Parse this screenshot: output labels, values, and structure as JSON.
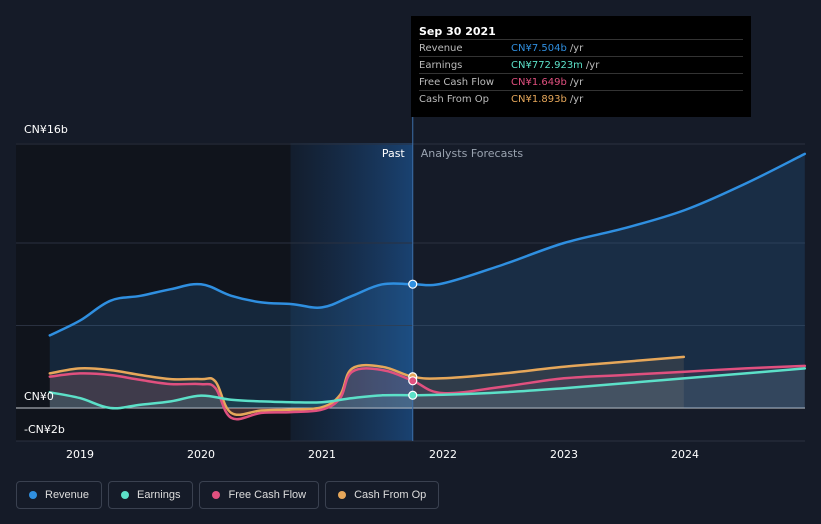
{
  "tooltip": {
    "date": "Sep 30 2021",
    "rows": [
      {
        "label": "Revenue",
        "value": "CN¥7.504b",
        "unit": "/yr",
        "color": "#2f8fe0"
      },
      {
        "label": "Earnings",
        "value": "CN¥772.923m",
        "unit": "/yr",
        "color": "#5ce0c8"
      },
      {
        "label": "Free Cash Flow",
        "value": "CN¥1.649b",
        "unit": "/yr",
        "color": "#e0507f"
      },
      {
        "label": "Cash From Op",
        "value": "CN¥1.893b",
        "unit": "/yr",
        "color": "#e6a75a"
      }
    ]
  },
  "past_label": "Past",
  "forecast_label": "Analysts Forecasts",
  "legend": [
    {
      "label": "Revenue",
      "color": "#2f8fe0"
    },
    {
      "label": "Earnings",
      "color": "#5ce0c8"
    },
    {
      "label": "Free Cash Flow",
      "color": "#e0507f"
    },
    {
      "label": "Cash From Op",
      "color": "#e6a75a"
    }
  ],
  "chart_data": {
    "type": "line",
    "y_unit": "CN¥b",
    "ylim": [
      -2,
      16
    ],
    "y_tick_labels": [
      {
        "value": 16,
        "label": "CN¥16b"
      },
      {
        "value": 0,
        "label": "CN¥0"
      },
      {
        "value": -2,
        "label": "-CN¥2b"
      }
    ],
    "x_ticks": [
      2019,
      2020,
      2021,
      2022,
      2023,
      2024
    ],
    "divider_x": 2021.75,
    "highlight_start": 2020.74,
    "series": [
      {
        "name": "Revenue",
        "color": "#2f8fe0",
        "points": [
          [
            2018.75,
            4.4
          ],
          [
            2019.0,
            5.3
          ],
          [
            2019.25,
            6.5
          ],
          [
            2019.5,
            6.8
          ],
          [
            2019.75,
            7.2
          ],
          [
            2020.0,
            7.5
          ],
          [
            2020.25,
            6.8
          ],
          [
            2020.5,
            6.4
          ],
          [
            2020.75,
            6.3
          ],
          [
            2021.0,
            6.1
          ],
          [
            2021.25,
            6.8
          ],
          [
            2021.5,
            7.5
          ],
          [
            2021.75,
            7.504
          ],
          [
            2022.0,
            7.55
          ],
          [
            2022.5,
            8.7
          ],
          [
            2023.0,
            10.0
          ],
          [
            2023.5,
            10.9
          ],
          [
            2024.0,
            12.0
          ],
          [
            2024.5,
            13.6
          ],
          [
            2024.99,
            15.4
          ]
        ]
      },
      {
        "name": "Earnings",
        "color": "#5ce0c8",
        "points": [
          [
            2018.75,
            0.95
          ],
          [
            2019.0,
            0.6
          ],
          [
            2019.25,
            0.0
          ],
          [
            2019.5,
            0.2
          ],
          [
            2019.75,
            0.4
          ],
          [
            2020.0,
            0.75
          ],
          [
            2020.25,
            0.5
          ],
          [
            2020.5,
            0.4
          ],
          [
            2020.75,
            0.35
          ],
          [
            2021.0,
            0.35
          ],
          [
            2021.25,
            0.6
          ],
          [
            2021.5,
            0.77
          ],
          [
            2021.75,
            0.773
          ],
          [
            2022.0,
            0.8
          ],
          [
            2022.5,
            0.95
          ],
          [
            2023.0,
            1.2
          ],
          [
            2023.5,
            1.5
          ],
          [
            2024.0,
            1.8
          ],
          [
            2024.5,
            2.1
          ],
          [
            2024.99,
            2.4
          ]
        ]
      },
      {
        "name": "Free Cash Flow",
        "color": "#e0507f",
        "points": [
          [
            2018.75,
            1.9
          ],
          [
            2019.0,
            2.1
          ],
          [
            2019.25,
            2.0
          ],
          [
            2019.5,
            1.7
          ],
          [
            2019.75,
            1.45
          ],
          [
            2020.0,
            1.45
          ],
          [
            2020.12,
            1.2
          ],
          [
            2020.25,
            -0.6
          ],
          [
            2020.5,
            -0.3
          ],
          [
            2020.75,
            -0.25
          ],
          [
            2021.0,
            -0.1
          ],
          [
            2021.15,
            0.6
          ],
          [
            2021.25,
            2.2
          ],
          [
            2021.5,
            2.3
          ],
          [
            2021.75,
            1.649
          ],
          [
            2022.0,
            0.9
          ],
          [
            2022.5,
            1.3
          ],
          [
            2023.0,
            1.8
          ],
          [
            2023.5,
            2.0
          ],
          [
            2024.0,
            2.2
          ],
          [
            2024.5,
            2.4
          ],
          [
            2024.99,
            2.55
          ]
        ]
      },
      {
        "name": "Cash From Op",
        "color": "#e6a75a",
        "points": [
          [
            2018.75,
            2.1
          ],
          [
            2019.0,
            2.4
          ],
          [
            2019.25,
            2.3
          ],
          [
            2019.5,
            2.0
          ],
          [
            2019.75,
            1.75
          ],
          [
            2020.0,
            1.75
          ],
          [
            2020.12,
            1.6
          ],
          [
            2020.25,
            -0.3
          ],
          [
            2020.5,
            -0.15
          ],
          [
            2020.75,
            -0.1
          ],
          [
            2021.0,
            0.05
          ],
          [
            2021.15,
            0.8
          ],
          [
            2021.25,
            2.4
          ],
          [
            2021.5,
            2.5
          ],
          [
            2021.75,
            1.893
          ],
          [
            2022.0,
            1.8
          ],
          [
            2022.5,
            2.1
          ],
          [
            2023.0,
            2.5
          ],
          [
            2023.5,
            2.8
          ],
          [
            2023.99,
            3.1
          ]
        ]
      }
    ]
  }
}
